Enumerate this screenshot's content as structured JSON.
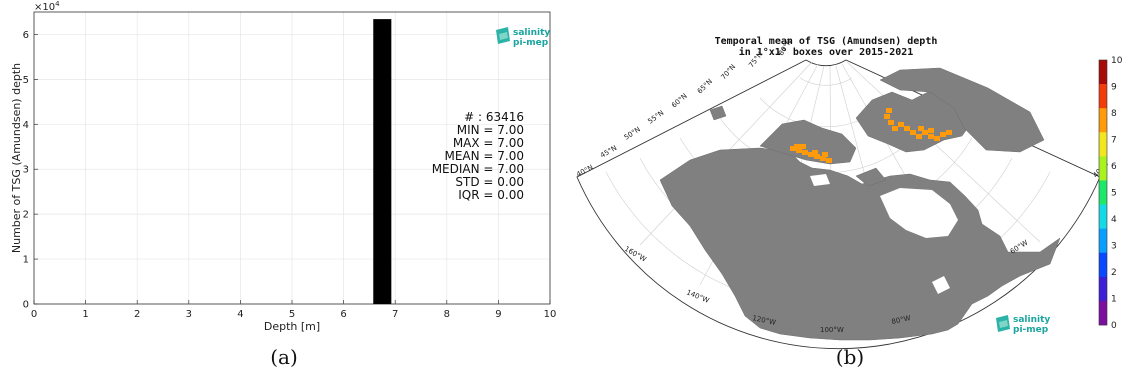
{
  "chart_data": [
    {
      "type": "bar",
      "x": [
        6.75
      ],
      "values": [
        63416
      ],
      "bin_width": 0.35,
      "xlabel": "Depth [m]",
      "ylabel": "Number of TSG (Amundsen) depth",
      "xlim": [
        0,
        10
      ],
      "ylim": [
        0,
        65000
      ],
      "xticks": [
        "0",
        "1",
        "2",
        "3",
        "4",
        "5",
        "6",
        "7",
        "8",
        "9",
        "10"
      ],
      "yticks": [
        "0",
        "1",
        "2",
        "3",
        "4",
        "5",
        "6"
      ],
      "y_exponent": "×10",
      "y_exponent_power": "4",
      "grid": true,
      "bar_color": "#000000",
      "stats": [
        "# : 63416",
        "MIN = 7.00",
        "MAX =  7.00",
        "MEAN = 7.00",
        "MEDIAN = 7.00",
        "STD = 0.00",
        "IQR = 0.00"
      ],
      "logo": [
        "salinity",
        "pi-mep"
      ]
    },
    {
      "type": "heatmap",
      "title_lines": [
        "Temporal mean of TSG (Amundsen) depth",
        "in 1°x1° boxes over 2015-2021"
      ],
      "colorbar": {
        "min": 0,
        "max": 10,
        "ticks": [
          "0",
          "1",
          "2",
          "3",
          "4",
          "5",
          "6",
          "7",
          "8",
          "9",
          "10"
        ],
        "colors": [
          "#7b0fa0",
          "#3c1fd6",
          "#0a49ff",
          "#0a9eff",
          "#14d9e6",
          "#1ee86a",
          "#a8f21e",
          "#f2e61e",
          "#ff9a0a",
          "#f23c0a",
          "#a80a0a"
        ]
      },
      "cell_value": 7,
      "cell_color": "#ff9a0a",
      "latitude_labels": [
        "40°N",
        "45°N",
        "50°N",
        "55°N",
        "60°N",
        "65°N",
        "70°N",
        "75°N",
        "80°N"
      ],
      "longitude_labels": [
        "160°W",
        "140°W",
        "120°W",
        "100°W",
        "80°W",
        "60°W",
        "40°W"
      ],
      "land_color": "#808080",
      "logo": [
        "salinity",
        "pi-mep"
      ]
    }
  ],
  "panel_labels": [
    "(a)",
    "(b)"
  ]
}
